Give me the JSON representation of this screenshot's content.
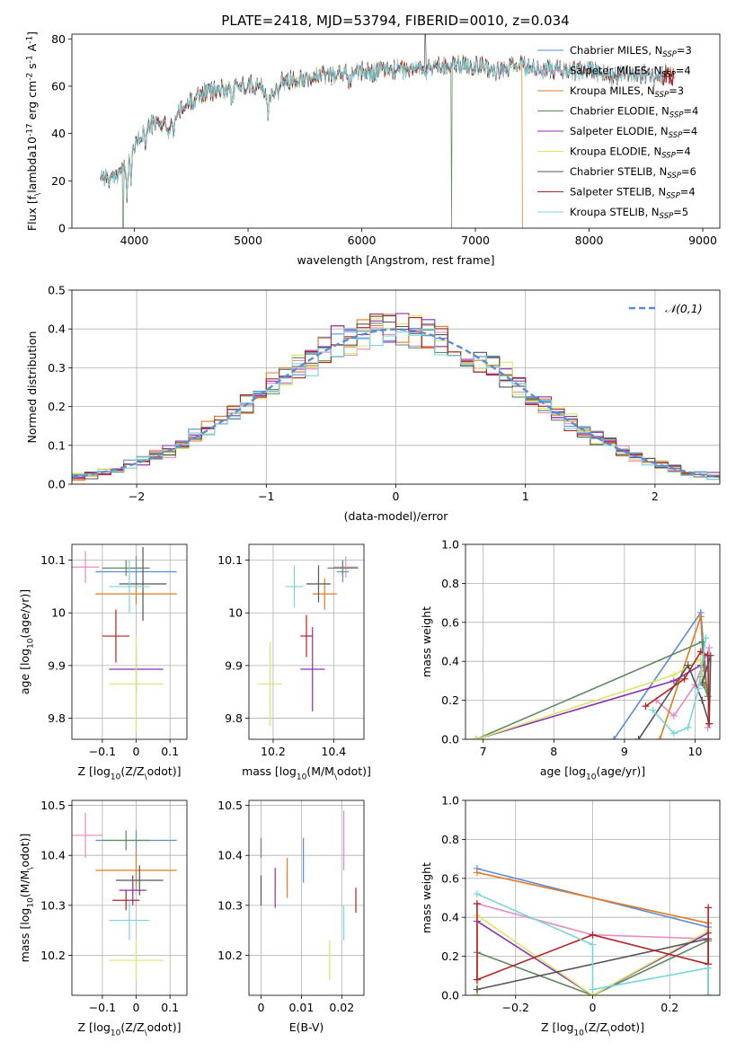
{
  "title": "PLATE=2418, MJD=53794, FIBERID=0010, z=0.034",
  "colors": [
    "#5b8bd9",
    "#e78ac3",
    "#e07b20",
    "#5e8a5e",
    "#8e2fb0",
    "#d4e86a",
    "#555555",
    "#b22222",
    "#78d6dc"
  ],
  "chart_data": [
    {
      "id": "spectrum",
      "type": "line",
      "xlabel": "wavelength [Angstrom, rest frame]",
      "ylabel": "Flux [f$_\\lambda$10$^{-17}$ erg cm$^{-2}$ s$^{-1}$ A$^{-1}$]",
      "xlim": [
        3450,
        9150
      ],
      "ylim": [
        0,
        82
      ],
      "xticks": [
        4000,
        5000,
        6000,
        7000,
        8000,
        9000
      ],
      "yticks": [
        0,
        20,
        40,
        60,
        80
      ],
      "legend_position": "top-right",
      "series": [
        {
          "name": "Chabrier MILES, N",
          "sub": "SSP",
          "suffix": "=3"
        },
        {
          "name": "Salpeter MILES, N",
          "sub": "SSP",
          "suffix": "=4"
        },
        {
          "name": "Kroupa MILES, N",
          "sub": "SSP",
          "suffix": "=3"
        },
        {
          "name": "Chabrier ELODIE, N",
          "sub": "SSP",
          "suffix": "=4"
        },
        {
          "name": "Salpeter ELODIE, N",
          "sub": "SSP",
          "suffix": "=4"
        },
        {
          "name": "Kroupa ELODIE, N",
          "sub": "SSP",
          "suffix": "=4"
        },
        {
          "name": "Chabrier STELIB, N",
          "sub": "SSP",
          "suffix": "=6"
        },
        {
          "name": "Salpeter STELIB, N",
          "sub": "SSP",
          "suffix": "=4"
        },
        {
          "name": "Kroupa STELIB, N",
          "sub": "SSP",
          "suffix": "=5"
        }
      ],
      "continuum": [
        [
          3700,
          23
        ],
        [
          3800,
          20
        ],
        [
          3900,
          26
        ],
        [
          4000,
          34
        ],
        [
          4100,
          43
        ],
        [
          4200,
          44
        ],
        [
          4300,
          45
        ],
        [
          4400,
          49
        ],
        [
          4500,
          54
        ],
        [
          4600,
          57
        ],
        [
          4700,
          58
        ],
        [
          4800,
          59
        ],
        [
          4900,
          60
        ],
        [
          5000,
          61
        ],
        [
          5100,
          60
        ],
        [
          5200,
          57
        ],
        [
          5300,
          62
        ],
        [
          5400,
          63
        ],
        [
          5500,
          64
        ],
        [
          5600,
          64
        ],
        [
          5700,
          65
        ],
        [
          5800,
          65
        ],
        [
          5900,
          66
        ],
        [
          6000,
          66
        ],
        [
          6100,
          66
        ],
        [
          6200,
          67
        ],
        [
          6300,
          67
        ],
        [
          6400,
          67
        ],
        [
          6500,
          68
        ],
        [
          6600,
          68
        ],
        [
          6700,
          69
        ],
        [
          6800,
          69
        ],
        [
          6900,
          69
        ],
        [
          7000,
          69
        ],
        [
          7100,
          68
        ],
        [
          7200,
          66
        ],
        [
          7300,
          68
        ],
        [
          7400,
          69
        ],
        [
          7500,
          67
        ],
        [
          7600,
          68
        ],
        [
          7700,
          67
        ],
        [
          7800,
          67
        ],
        [
          7900,
          66
        ],
        [
          8000,
          67
        ],
        [
          8100,
          66
        ],
        [
          8200,
          64
        ],
        [
          8300,
          66
        ],
        [
          8400,
          65
        ],
        [
          8500,
          65
        ],
        [
          8600,
          64
        ],
        [
          8700,
          65
        ],
        [
          8750,
          64
        ]
      ]
    },
    {
      "id": "residuals",
      "type": "step",
      "xlabel": "(data-model)/error",
      "ylabel": "Normed distribution",
      "xlim": [
        -2.5,
        2.5
      ],
      "ylim": [
        0,
        0.5
      ],
      "xticks": [
        -2,
        -1,
        0,
        1,
        2
      ],
      "yticks": [
        0.0,
        0.1,
        0.2,
        0.3,
        0.4,
        0.5
      ],
      "bin_width": 0.1,
      "legend": "$\\mathcal{N}(0,1)$",
      "legend_position": "top-right",
      "reference_curve": "gaussian mean 0 sigma 1"
    },
    {
      "id": "age_vs_Z",
      "type": "errorbar",
      "xlabel": "Z [log$_{10}$($Z/Z_\\odot$)]",
      "ylabel": "age  [log$_{10}$($age/yr$)]",
      "xlim": [
        -0.19,
        0.15
      ],
      "ylim": [
        9.76,
        10.13
      ],
      "xticks": [
        -0.1,
        0.0,
        0.1
      ],
      "yticks": [
        9.8,
        9.9,
        10.0,
        10.1
      ],
      "points": [
        {
          "x": 0.0,
          "xerr": 0.12,
          "y": 10.078,
          "yerr": 0.03,
          "series": 0
        },
        {
          "x": -0.15,
          "xerr": 0.04,
          "y": 10.087,
          "yerr": 0.03,
          "series": 1
        },
        {
          "x": 0.0,
          "xerr": 0.12,
          "y": 10.036,
          "yerr": 0.02,
          "series": 2
        },
        {
          "x": -0.03,
          "xerr": 0.07,
          "y": 10.085,
          "yerr": 0.015,
          "series": 3
        },
        {
          "x": 0.0,
          "xerr": 0.08,
          "y": 9.893,
          "yerr": 0.045,
          "series": 4
        },
        {
          "x": 0.0,
          "xerr": 0.08,
          "y": 9.865,
          "yerr": 0.09,
          "series": 5
        },
        {
          "x": 0.02,
          "xerr": 0.07,
          "y": 10.055,
          "yerr": 0.07,
          "series": 6
        },
        {
          "x": -0.06,
          "xerr": 0.04,
          "y": 9.956,
          "yerr": 0.05,
          "series": 7
        },
        {
          "x": -0.02,
          "xerr": 0.06,
          "y": 10.05,
          "yerr": 0.05,
          "series": 8
        }
      ]
    },
    {
      "id": "age_vs_mass",
      "type": "errorbar",
      "xlabel": "mass [log$_{10}$($M/M_\\odot$)]",
      "ylabel": "",
      "xlim": [
        10.12,
        10.5
      ],
      "ylim": [
        9.76,
        10.13
      ],
      "xticks": [
        10.2,
        10.4
      ],
      "yticks": [
        9.8,
        9.9,
        10.0,
        10.1
      ],
      "points": [
        {
          "x": 10.43,
          "xerr": 0.02,
          "y": 10.078,
          "yerr": 0.02,
          "series": 0
        },
        {
          "x": 10.44,
          "xerr": 0.04,
          "y": 10.087,
          "yerr": 0.02,
          "series": 1
        },
        {
          "x": 10.37,
          "xerr": 0.04,
          "y": 10.036,
          "yerr": 0.03,
          "series": 2
        },
        {
          "x": 10.43,
          "xerr": 0.05,
          "y": 10.085,
          "yerr": 0.015,
          "series": 3
        },
        {
          "x": 10.33,
          "xerr": 0.04,
          "y": 9.893,
          "yerr": 0.08,
          "series": 4
        },
        {
          "x": 10.19,
          "xerr": 0.04,
          "y": 9.865,
          "yerr": 0.08,
          "series": 5
        },
        {
          "x": 10.35,
          "xerr": 0.04,
          "y": 10.055,
          "yerr": 0.035,
          "series": 6
        },
        {
          "x": 10.31,
          "xerr": 0.02,
          "y": 9.956,
          "yerr": 0.04,
          "series": 7
        },
        {
          "x": 10.27,
          "xerr": 0.03,
          "y": 10.05,
          "yerr": 0.04,
          "series": 8
        }
      ]
    },
    {
      "id": "weights_vs_age",
      "type": "line",
      "xlabel": "age  [log$_{10}$($age/yr$)]",
      "ylabel": "mass weight",
      "xlim": [
        6.75,
        10.35
      ],
      "ylim": [
        0,
        1.0
      ],
      "xticks": [
        7,
        8,
        9,
        10
      ],
      "yticks": [
        0.0,
        0.2,
        0.4,
        0.6,
        0.8,
        1.0
      ],
      "series": [
        {
          "series": 0,
          "x": [
            8.85,
            10.08,
            10.15
          ],
          "y": [
            0.0,
            0.65,
            0.35
          ]
        },
        {
          "series": 1,
          "x": [
            9.45,
            9.7,
            10.0,
            10.2,
            10.18
          ],
          "y": [
            0.2,
            0.12,
            0.28,
            0.47,
            0.06
          ]
        },
        {
          "series": 2,
          "x": [
            9.5,
            10.08,
            10.12,
            10.15
          ],
          "y": [
            0.0,
            0.63,
            0.37,
            0.28
          ]
        },
        {
          "series": 3,
          "x": [
            6.9,
            10.1,
            10.18,
            10.12
          ],
          "y": [
            0.0,
            0.5,
            0.22,
            0.28
          ]
        },
        {
          "series": 4,
          "x": [
            6.9,
            9.7,
            10.08,
            10.1
          ],
          "y": [
            0.0,
            0.3,
            0.38,
            0.32
          ]
        },
        {
          "series": 5,
          "x": [
            6.9,
            9.7,
            10.08,
            10.1
          ],
          "y": [
            0.0,
            0.33,
            0.41,
            0.3
          ]
        },
        {
          "series": 6,
          "x": [
            9.2,
            9.9,
            10.1,
            10.2,
            10.22,
            10.1
          ],
          "y": [
            0.0,
            0.38,
            0.2,
            0.08,
            0.43,
            0.29
          ]
        },
        {
          "series": 7,
          "x": [
            9.3,
            9.85,
            10.08,
            10.18,
            10.2
          ],
          "y": [
            0.17,
            0.31,
            0.45,
            0.43,
            0.08
          ]
        },
        {
          "series": 8,
          "x": [
            9.4,
            9.7,
            9.9,
            10.05,
            10.15
          ],
          "y": [
            0.15,
            0.03,
            0.06,
            0.26,
            0.52
          ]
        }
      ]
    },
    {
      "id": "mass_vs_Z",
      "type": "errorbar",
      "xlabel": "Z [log$_{10}$($Z/Z_\\odot$)]",
      "ylabel": "mass [log$_{10}$($M/M_\\odot$)]",
      "xlim": [
        -0.19,
        0.15
      ],
      "ylim": [
        10.12,
        10.51
      ],
      "xticks": [
        -0.1,
        0.0,
        0.1
      ],
      "yticks": [
        10.2,
        10.3,
        10.4,
        10.5
      ],
      "points": [
        {
          "x": 0.0,
          "xerr": 0.12,
          "y": 10.43,
          "yerr": 0.02,
          "series": 0
        },
        {
          "x": -0.15,
          "xerr": 0.05,
          "y": 10.44,
          "yerr": 0.045,
          "series": 1
        },
        {
          "x": 0.0,
          "xerr": 0.12,
          "y": 10.37,
          "yerr": 0.04,
          "series": 2
        },
        {
          "x": -0.03,
          "xerr": 0.07,
          "y": 10.43,
          "yerr": 0.02,
          "series": 3
        },
        {
          "x": -0.01,
          "xerr": 0.04,
          "y": 10.33,
          "yerr": 0.03,
          "series": 4
        },
        {
          "x": 0.0,
          "xerr": 0.08,
          "y": 10.19,
          "yerr": 0.04,
          "series": 5
        },
        {
          "x": 0.01,
          "xerr": 0.07,
          "y": 10.35,
          "yerr": 0.03,
          "series": 6
        },
        {
          "x": -0.03,
          "xerr": 0.04,
          "y": 10.31,
          "yerr": 0.02,
          "series": 7
        },
        {
          "x": -0.02,
          "xerr": 0.06,
          "y": 10.27,
          "yerr": 0.04,
          "series": 8
        }
      ]
    },
    {
      "id": "mass_vs_ebv",
      "type": "errorbar",
      "xlabel": "E(B-V)",
      "ylabel": "",
      "xlim": [
        -0.003,
        0.0255
      ],
      "ylim": [
        10.12,
        10.51
      ],
      "xticks": [
        0.0,
        0.01,
        0.02
      ],
      "yticks": [
        10.2,
        10.3,
        10.4,
        10.5
      ],
      "points": [
        {
          "x": 0.0105,
          "xerr": 0,
          "y": 10.39,
          "yerr": 0.045,
          "series": 0
        },
        {
          "x": 0.0205,
          "xerr": 0,
          "y": 10.43,
          "yerr": 0.06,
          "series": 1
        },
        {
          "x": 0.0065,
          "xerr": 0,
          "y": 10.355,
          "yerr": 0.04,
          "series": 2
        },
        {
          "x": 0.0,
          "xerr": 0,
          "y": 10.415,
          "yerr": 0.02,
          "series": 3
        },
        {
          "x": 0.0035,
          "xerr": 0,
          "y": 10.335,
          "yerr": 0.04,
          "series": 4
        },
        {
          "x": 0.017,
          "xerr": 0,
          "y": 10.19,
          "yerr": 0.04,
          "series": 5
        },
        {
          "x": 0.0,
          "xerr": 0,
          "y": 10.33,
          "yerr": 0.03,
          "series": 6
        },
        {
          "x": 0.0235,
          "xerr": 0,
          "y": 10.31,
          "yerr": 0.025,
          "series": 7
        },
        {
          "x": 0.0205,
          "xerr": 0,
          "y": 10.265,
          "yerr": 0.035,
          "series": 8
        }
      ]
    },
    {
      "id": "weights_vs_Z",
      "type": "line",
      "xlabel": "Z [log$_{10}$($Z/Z_\\odot$)]",
      "ylabel": "mass weight",
      "xlim": [
        -0.33,
        0.33
      ],
      "ylim": [
        0,
        1.0
      ],
      "xticks": [
        -0.2,
        0.0,
        0.2
      ],
      "yticks": [
        0.0,
        0.2,
        0.4,
        0.6,
        0.8,
        1.0
      ],
      "series": [
        {
          "series": 0,
          "x": [
            -0.3,
            0.3
          ],
          "y": [
            0.65,
            0.35
          ]
        },
        {
          "series": 1,
          "x": [
            -0.3,
            0.0,
            0.3
          ],
          "y": [
            0.47,
            0.31,
            0.29
          ]
        },
        {
          "series": 2,
          "x": [
            -0.3,
            0.3
          ],
          "y": [
            0.63,
            0.37
          ]
        },
        {
          "series": 3,
          "x": [
            -0.3,
            -0.3,
            0.0,
            0.3
          ],
          "y": [
            0.0,
            0.22,
            0.0,
            0.28
          ]
        },
        {
          "series": 4,
          "x": [
            -0.3,
            -0.3,
            0.0,
            0.3
          ],
          "y": [
            0.0,
            0.38,
            0.0,
            0.32
          ]
        },
        {
          "series": 5,
          "x": [
            -0.3,
            -0.3,
            0.0,
            0.3
          ],
          "y": [
            0.0,
            0.41,
            0.0,
            0.33
          ]
        },
        {
          "series": 6,
          "x": [
            -0.3,
            0.3,
            0.3
          ],
          "y": [
            0.03,
            0.29,
            0.0
          ]
        },
        {
          "series": 7,
          "x": [
            -0.3,
            -0.3,
            0.0,
            0.3,
            0.3
          ],
          "y": [
            0.47,
            0.08,
            0.31,
            0.16,
            0.45
          ]
        },
        {
          "series": 8,
          "x": [
            -0.3,
            0.0,
            0.0,
            0.3,
            0.3
          ],
          "y": [
            0.52,
            0.26,
            0.03,
            0.14,
            0.0
          ]
        }
      ]
    }
  ]
}
